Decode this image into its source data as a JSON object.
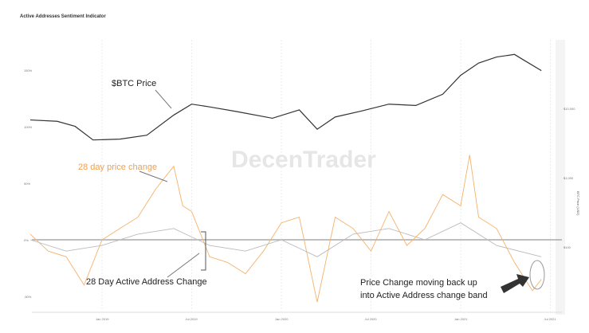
{
  "chart_data": {
    "type": "line",
    "title": "Active Addresses Sentiment Indicator",
    "watermark": "DecenTrader",
    "x_ticks": [
      "Jan 2019",
      "Jul 2019",
      "Jan 2020",
      "Jul 2020",
      "Jan 2021",
      "Jul 2021"
    ],
    "left_axis": {
      "ticks": [
        "150%",
        "100%",
        "50%",
        "0%",
        "-50%"
      ],
      "values": [
        150,
        100,
        50,
        0,
        -50
      ]
    },
    "right_axis": {
      "label": "BTC Price (USD)",
      "ticks": [
        "$10,000",
        "$1,000",
        "$100"
      ],
      "scale": "log"
    },
    "series": [
      {
        "name": "BTC Price",
        "axis": "right",
        "color": "#333333",
        "x": [
          2018.6,
          2018.75,
          2018.85,
          2018.95,
          2019.1,
          2019.25,
          2019.4,
          2019.5,
          2019.6,
          2019.75,
          2019.95,
          2020.1,
          2020.2,
          2020.3,
          2020.45,
          2020.6,
          2020.75,
          2020.9,
          2021.0,
          2021.1,
          2021.2,
          2021.3,
          2021.35,
          2021.45
        ],
        "values": [
          6800,
          6500,
          5500,
          3500,
          3600,
          4100,
          8000,
          11500,
          10500,
          9000,
          7200,
          9500,
          5000,
          7500,
          9200,
          11500,
          11000,
          16000,
          30000,
          45000,
          55000,
          60000,
          50000,
          35000
        ]
      },
      {
        "name": "28 day price change",
        "axis": "left",
        "color": "#f5b26b",
        "x": [
          2018.6,
          2018.7,
          2018.8,
          2018.9,
          2019.0,
          2019.1,
          2019.2,
          2019.3,
          2019.4,
          2019.45,
          2019.5,
          2019.6,
          2019.7,
          2019.8,
          2019.9,
          2020.0,
          2020.1,
          2020.2,
          2020.3,
          2020.4,
          2020.5,
          2020.6,
          2020.7,
          2020.8,
          2020.9,
          2021.0,
          2021.05,
          2021.1,
          2021.2,
          2021.3,
          2021.4,
          2021.45
        ],
        "values": [
          5,
          -10,
          -15,
          -40,
          0,
          10,
          20,
          45,
          65,
          30,
          25,
          -15,
          -20,
          -30,
          -10,
          15,
          20,
          -55,
          20,
          10,
          -10,
          25,
          -5,
          10,
          40,
          30,
          75,
          20,
          10,
          -20,
          -45,
          -35
        ]
      },
      {
        "name": "28 Day Active Address Change",
        "axis": "left",
        "color": "#bbbbbb",
        "x": [
          2018.6,
          2018.8,
          2019.0,
          2019.2,
          2019.4,
          2019.6,
          2019.8,
          2020.0,
          2020.2,
          2020.4,
          2020.6,
          2020.8,
          2021.0,
          2021.2,
          2021.45
        ],
        "values": [
          0,
          -10,
          -5,
          5,
          10,
          -5,
          -10,
          0,
          -15,
          5,
          10,
          0,
          15,
          -5,
          -15
        ]
      }
    ],
    "annotations": [
      "$BTC Price",
      "28 day price change",
      "28 Day Active Address Change",
      "Price Change moving back up",
      "into Active Address change band"
    ]
  }
}
